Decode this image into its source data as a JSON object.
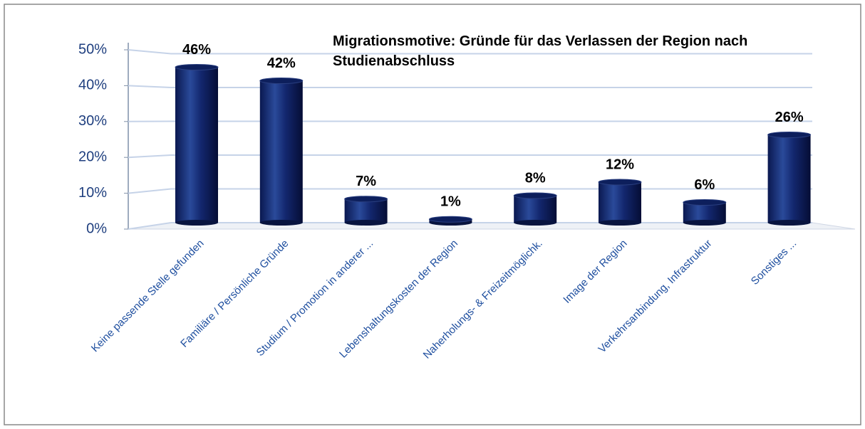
{
  "chart_data": {
    "type": "bar",
    "title": "Migrationsmotive: Gründe für das Verlassen der Region nach Studienabschluss",
    "categories": [
      "Keine passende Stelle gefunden",
      "Familiäre / Persönliche Gründe",
      "Studium / Promotion in anderer ...",
      "Lebenshaltungskosten der Region",
      "Naherholungs- & Freizeitmöglichk.",
      "Image der Region",
      "Verkehrsanbindung, Infrastruktur",
      "Sonstiges ..."
    ],
    "values": [
      46,
      42,
      7,
      1,
      8,
      12,
      6,
      26
    ],
    "value_labels": [
      "46%",
      "42%",
      "7%",
      "1%",
      "8%",
      "12%",
      "6%",
      "26%"
    ],
    "color": "#0d1f5c",
    "ylim": [
      0,
      50
    ],
    "yticks": [
      {
        "value": 0,
        "label": "0%"
      },
      {
        "value": 10,
        "label": "10%"
      },
      {
        "value": 20,
        "label": "20%"
      },
      {
        "value": 30,
        "label": "30%"
      },
      {
        "value": 40,
        "label": "40%"
      },
      {
        "value": 50,
        "label": "50%"
      }
    ],
    "grid": true
  }
}
